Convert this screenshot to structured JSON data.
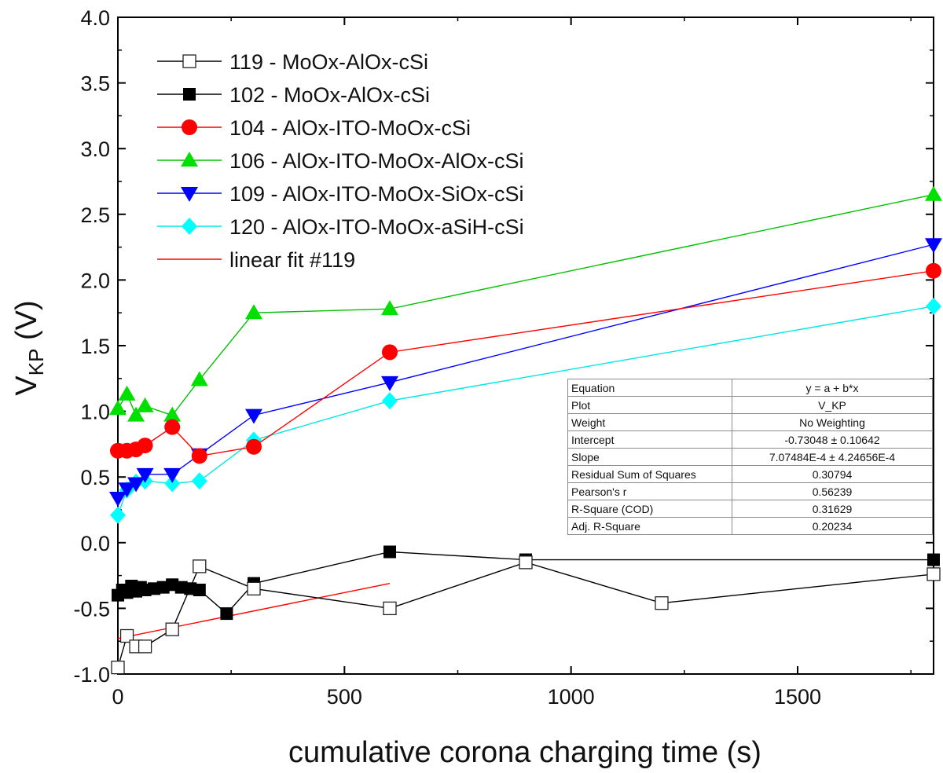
{
  "chart_data": {
    "type": "line",
    "xlabel": "cumulative corona charging time (s)",
    "ylabel": "V",
    "ylabel_subscript": "KP",
    "ylabel_unit": " (V)",
    "xlim": [
      0,
      1800
    ],
    "ylim": [
      -1.0,
      4.0
    ],
    "x_ticks": [
      0,
      500,
      1000,
      1500
    ],
    "x_tick_labels": [
      "0",
      "500",
      "1000",
      "1500"
    ],
    "y_ticks": [
      -1.0,
      -0.5,
      0.0,
      0.5,
      1.0,
      1.5,
      2.0,
      2.5,
      3.0,
      3.5,
      4.0
    ],
    "y_tick_labels": [
      "-1.0",
      "-0.5",
      "0.0",
      "0.5",
      "1.0",
      "1.5",
      "2.0",
      "2.5",
      "3.0",
      "3.5",
      "4.0"
    ],
    "legend_position": "top-left",
    "series": [
      {
        "name": "119 - MoOx-AlOx-cSi",
        "color": "#000000",
        "line_color": "#000000",
        "marker": "square-open",
        "x": [
          0,
          20,
          40,
          60,
          120,
          180,
          300,
          600,
          900,
          1200,
          1800
        ],
        "y": [
          -0.95,
          -0.71,
          -0.79,
          -0.79,
          -0.66,
          -0.18,
          -0.35,
          -0.5,
          -0.15,
          -0.46,
          -0.24
        ]
      },
      {
        "name": "102 - MoOx-AlOx-cSi",
        "color": "#000000",
        "line_color": "#000000",
        "marker": "square-filled",
        "x": [
          0,
          10,
          20,
          30,
          40,
          50,
          60,
          80,
          100,
          120,
          140,
          160,
          180,
          240,
          300,
          600,
          900,
          1800
        ],
        "y": [
          -0.4,
          -0.36,
          -0.38,
          -0.33,
          -0.37,
          -0.34,
          -0.36,
          -0.35,
          -0.34,
          -0.32,
          -0.34,
          -0.35,
          -0.36,
          -0.54,
          -0.31,
          -0.07,
          -0.13,
          -0.13
        ]
      },
      {
        "name": "104 - AlOx-ITO-MoOx-cSi",
        "color": "#ff0000",
        "line_color": "#ff0000",
        "marker": "circle",
        "x": [
          0,
          20,
          40,
          60,
          120,
          180,
          300,
          600,
          1800
        ],
        "y": [
          0.7,
          0.7,
          0.71,
          0.74,
          0.88,
          0.66,
          0.73,
          1.45,
          2.07
        ]
      },
      {
        "name": "106 - AlOx-ITO-MoOx-AlOx-cSi",
        "color": "#00e000",
        "line_color": "#00c000",
        "marker": "triangle-up",
        "x": [
          0,
          20,
          40,
          60,
          120,
          180,
          300,
          600,
          1800
        ],
        "y": [
          1.02,
          1.13,
          0.97,
          1.04,
          0.97,
          1.24,
          1.75,
          1.78,
          2.65
        ]
      },
      {
        "name": "109 - AlOx-ITO-MoOx-SiOx-cSi",
        "color": "#0000ff",
        "line_color": "#0000ff",
        "marker": "triangle-down",
        "x": [
          0,
          20,
          40,
          60,
          120,
          180,
          300,
          600,
          1800
        ],
        "y": [
          0.34,
          0.41,
          0.45,
          0.52,
          0.52,
          0.67,
          0.97,
          1.22,
          2.27
        ]
      },
      {
        "name": "120 - AlOx-ITO-MoOx-aSiH-cSi",
        "color": "#00ffff",
        "line_color": "#00e5e5",
        "marker": "diamond",
        "x": [
          0,
          20,
          40,
          60,
          120,
          180,
          300,
          600,
          1800
        ],
        "y": [
          0.21,
          0.4,
          0.46,
          0.47,
          0.45,
          0.47,
          0.78,
          1.08,
          1.8
        ]
      },
      {
        "name": "linear fit #119",
        "color": "#ff0000",
        "line_color": "#ff0000",
        "marker": "none",
        "x": [
          0,
          600
        ],
        "y": [
          -0.73,
          -0.31
        ]
      }
    ]
  },
  "fit_table": {
    "rows": [
      {
        "label": "Equation",
        "value": "y = a + b*x"
      },
      {
        "label": "Plot",
        "value": "V_KP"
      },
      {
        "label": "Weight",
        "value": "No Weighting"
      },
      {
        "label": "Intercept",
        "value": "-0.73048 ± 0.10642"
      },
      {
        "label": "Slope",
        "value": "7.07484E-4 ± 4.24656E-4"
      },
      {
        "label": "Residual Sum of Squares",
        "value": "0.30794"
      },
      {
        "label": "Pearson's r",
        "value": "0.56239"
      },
      {
        "label": "R-Square (COD)",
        "value": "0.31629"
      },
      {
        "label": "Adj. R-Square",
        "value": "0.20234"
      }
    ]
  }
}
